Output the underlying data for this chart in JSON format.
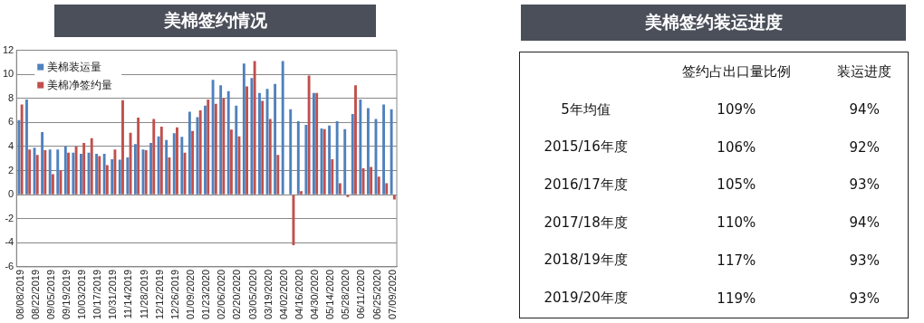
{
  "chart_data": [
    {
      "type": "bar",
      "title": "美棉签约情况",
      "categories": [
        "08/08/2019",
        null,
        "08/22/2019",
        null,
        "09/05/2019",
        null,
        "09/19/2019",
        null,
        "10/03/2019",
        null,
        "10/17/2019",
        null,
        "10/31/2019",
        null,
        "11/14/2019",
        null,
        "11/28/2019",
        null,
        "12/12/2019",
        null,
        "12/26/2019",
        null,
        "01/09/2020",
        null,
        "01/23/2020",
        null,
        "02/06/2020",
        null,
        "02/20/2020",
        null,
        "03/05/2020",
        null,
        "03/19/2020",
        null,
        "04/02/2020",
        null,
        "04/16/2020",
        null,
        "04/30/2020",
        null,
        "05/14/2020",
        null,
        "05/28/2020",
        null,
        "06/11/2020",
        null,
        "06/25/2020",
        null,
        "07/09/2020"
      ],
      "series": [
        {
          "name": "美棉装运量",
          "color": "#4f81bd",
          "values": [
            6.2,
            7.9,
            3.9,
            5.2,
            3.75,
            3.75,
            4.0,
            3.5,
            3.4,
            3.5,
            3.4,
            3.4,
            2.95,
            2.9,
            3.1,
            4.2,
            3.75,
            4.3,
            4.85,
            4.55,
            5.1,
            4.8,
            6.9,
            6.45,
            7.4,
            9.55,
            9.1,
            8.6,
            7.4,
            10.9,
            9.7,
            8.45,
            8.8,
            9.2,
            11.1,
            7.1,
            6.1,
            5.8,
            8.45,
            5.5,
            5.75,
            6.1,
            5.45,
            6.7,
            7.9,
            7.2,
            6.3,
            7.5,
            7.1
          ]
        },
        {
          "name": "美棉净签约量",
          "color": "#c0504d",
          "values": [
            7.5,
            3.75,
            3.3,
            3.7,
            1.7,
            2.0,
            3.5,
            4.0,
            4.3,
            4.7,
            3.2,
            2.45,
            3.75,
            7.85,
            5.15,
            6.4,
            3.7,
            6.3,
            5.65,
            3.1,
            5.6,
            3.5,
            5.3,
            7.0,
            7.9,
            7.55,
            8.0,
            5.4,
            4.85,
            9.0,
            11.1,
            7.8,
            6.3,
            3.3,
            null,
            -4.2,
            0.3,
            9.9,
            8.45,
            5.45,
            2.95,
            0.95,
            -0.2,
            9.1,
            2.2,
            2.3,
            1.5,
            0.95,
            -0.4
          ]
        }
      ],
      "ylim": [
        -6,
        12
      ],
      "yticks": [
        -6,
        -4,
        -2,
        0,
        2,
        4,
        6,
        8,
        10,
        12
      ],
      "grid": "y",
      "legend": "top left"
    },
    {
      "type": "other",
      "title": "美棉签约装运进度",
      "categories": [
        "签约占出口量比例",
        "装运进度"
      ],
      "y_categories": [
        "5年均值",
        "2015/16年度",
        "2016/17年度",
        "2017/18年度",
        "2018/19年度",
        "2019/20年度"
      ],
      "cell_labels": [
        [
          "109%",
          "94%"
        ],
        [
          "106%",
          "92%"
        ],
        [
          "105%",
          "93%"
        ],
        [
          "110%",
          "94%"
        ],
        [
          "117%",
          "93%"
        ],
        [
          "119%",
          "93%"
        ]
      ]
    }
  ]
}
